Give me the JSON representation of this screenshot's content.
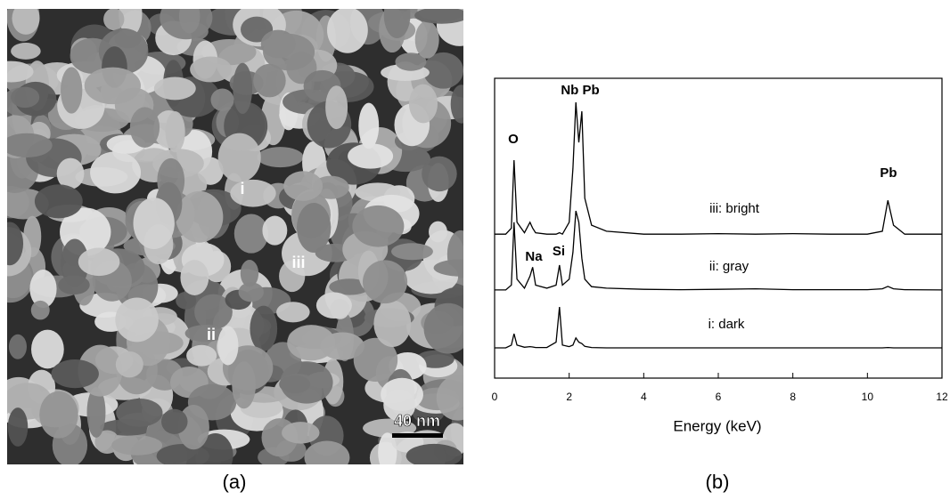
{
  "image_panel": {
    "caption": "(a)",
    "labels": [
      "i",
      "iii",
      "ii"
    ],
    "scale_bar": "40 nm"
  },
  "chart_data": {
    "type": "line",
    "caption": "(b)",
    "x_label": "Energy (keV)",
    "x": [
      0,
      0.3,
      0.45,
      0.52,
      0.6,
      0.8,
      0.95,
      1.02,
      1.1,
      1.4,
      1.65,
      1.74,
      1.82,
      2.0,
      2.1,
      2.18,
      2.26,
      2.34,
      2.42,
      2.6,
      3,
      4,
      5,
      6,
      7,
      8,
      9,
      10,
      10.4,
      10.55,
      10.7,
      11,
      12
    ],
    "series": [
      {
        "name": "iii: bright",
        "color": "#000000",
        "values": [
          48,
          48,
          50,
          72.7,
          52,
          48.5,
          52,
          50,
          48.5,
          48,
          48,
          48.5,
          48,
          52,
          70,
          92,
          78.6,
          89,
          60,
          51,
          49,
          48,
          48,
          48.2,
          48,
          48.2,
          48,
          48,
          49,
          59.3,
          51,
          48,
          48
        ]
      },
      {
        "name": "ii: gray",
        "color": "#000000",
        "values": [
          29.4,
          29.4,
          31,
          52,
          33,
          30,
          34,
          37,
          31,
          30,
          31,
          37.7,
          31,
          33,
          42,
          55.8,
          52,
          40,
          33,
          30.5,
          30,
          29.6,
          29.5,
          29.6,
          29.8,
          29.5,
          29.5,
          29.5,
          29.8,
          30.6,
          29.8,
          29.5,
          29.4
        ]
      },
      {
        "name": "i: dark",
        "color": "#000000",
        "values": [
          10.1,
          10.1,
          11,
          14.8,
          11,
          10.3,
          10.5,
          10.4,
          10.2,
          10.2,
          12,
          23.7,
          11,
          10.5,
          11,
          13.4,
          12,
          11.5,
          10.6,
          10.2,
          10.1,
          10.1,
          10.1,
          10.1,
          10.1,
          10.1,
          10.1,
          10.1,
          10.1,
          10.2,
          10.1,
          10.1,
          10.1
        ]
      }
    ],
    "annotations": [
      "O",
      "Na",
      "Si",
      "Nb Pb",
      "Pb"
    ],
    "xlim": [
      0,
      12
    ],
    "xticks": [
      0,
      2,
      4,
      6,
      8,
      10,
      12
    ],
    "ylim": [
      0,
      100
    ]
  }
}
